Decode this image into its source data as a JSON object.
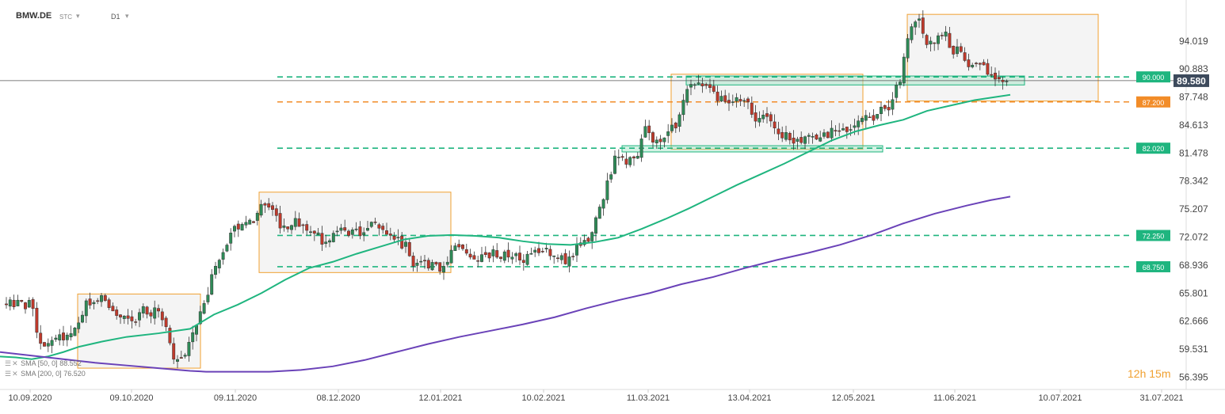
{
  "header": {
    "symbol": "BMW.DE",
    "exchange": "STC",
    "timeframe": "D1",
    "dropdown_icon": "chevron-down-icon"
  },
  "legend": {
    "sma50": {
      "label": "SMA [50, 0]",
      "value": "88.552",
      "color": "#1fb57f"
    },
    "sma200": {
      "label": "SMA [200, 0]",
      "value": "76.520",
      "color": "#6a42b8"
    }
  },
  "countdown": {
    "hours": "12",
    "hours_unit": "h",
    "minutes": "15",
    "minutes_unit": "m",
    "color": "#f0a030"
  },
  "chart_data": {
    "type": "candlestick",
    "title": "",
    "ylim": [
      55.9,
      97.9
    ],
    "grid": false,
    "colors": {
      "up": "#2e8b57",
      "down": "#c0392b",
      "support": "#1fb57f",
      "resistance": "#f28c28",
      "zone_box_border": "#f0a030"
    },
    "x_ticks": [
      "10.09.2020",
      "09.10.2020",
      "09.11.2020",
      "08.12.2020",
      "12.01.2021",
      "10.02.2021",
      "11.03.2021",
      "13.04.2021",
      "12.05.2021",
      "11.06.2021",
      "10.07.2021",
      "31.07.2021"
    ],
    "y_ticks": [
      "94.019",
      "90.883",
      "87.748",
      "84.613",
      "81.478",
      "78.342",
      "75.207",
      "72.072",
      "68.936",
      "65.801",
      "62.666",
      "59.531",
      "56.395"
    ],
    "current_price": {
      "value": 89.58,
      "label": "89.580"
    },
    "levels": [
      {
        "value": 90.0,
        "label": "90.000",
        "color": "#1fb57f"
      },
      {
        "value": 87.2,
        "label": "87.200",
        "color": "#f28c28"
      },
      {
        "value": 82.02,
        "label": "82.020",
        "color": "#1fb57f"
      },
      {
        "value": 72.25,
        "label": "72.250",
        "color": "#1fb57f"
      },
      {
        "value": 68.75,
        "label": "68.750",
        "color": "#1fb57f"
      }
    ],
    "series": [
      {
        "name": "SMA [50, 0]",
        "type": "line",
        "color": "#1fb57f",
        "points": [
          [
            0,
            58.7
          ],
          [
            20,
            58.6
          ],
          [
            40,
            58.4
          ],
          [
            60,
            58.7
          ],
          [
            80,
            59.2
          ],
          [
            100,
            59.8
          ],
          [
            130,
            60.4
          ],
          [
            160,
            60.9
          ],
          [
            200,
            61.3
          ],
          [
            240,
            61.8
          ],
          [
            270,
            63.4
          ],
          [
            300,
            64.5
          ],
          [
            330,
            65.8
          ],
          [
            360,
            67.3
          ],
          [
            390,
            68.6
          ],
          [
            420,
            69.3
          ],
          [
            450,
            70.2
          ],
          [
            480,
            71.0
          ],
          [
            510,
            71.8
          ],
          [
            540,
            72.2
          ],
          [
            570,
            72.3
          ],
          [
            600,
            72.2
          ],
          [
            630,
            72.0
          ],
          [
            660,
            71.6
          ],
          [
            690,
            71.3
          ],
          [
            720,
            71.2
          ],
          [
            750,
            71.5
          ],
          [
            780,
            72.0
          ],
          [
            810,
            73.0
          ],
          [
            840,
            74.1
          ],
          [
            870,
            75.3
          ],
          [
            900,
            76.6
          ],
          [
            930,
            77.9
          ],
          [
            960,
            79.1
          ],
          [
            990,
            80.3
          ],
          [
            1020,
            81.6
          ],
          [
            1050,
            82.9
          ],
          [
            1080,
            83.9
          ],
          [
            1110,
            84.6
          ],
          [
            1140,
            85.2
          ],
          [
            1170,
            86.2
          ],
          [
            1200,
            86.8
          ],
          [
            1230,
            87.4
          ],
          [
            1260,
            87.8
          ],
          [
            1275,
            88.0
          ]
        ]
      },
      {
        "name": "SMA [200, 0]",
        "type": "line",
        "color": "#6a42b8",
        "points": [
          [
            0,
            59.2
          ],
          [
            40,
            58.8
          ],
          [
            80,
            58.4
          ],
          [
            120,
            58.0
          ],
          [
            160,
            57.7
          ],
          [
            200,
            57.4
          ],
          [
            240,
            57.1
          ],
          [
            260,
            57.0
          ],
          [
            300,
            57.0
          ],
          [
            340,
            57.0
          ],
          [
            380,
            57.2
          ],
          [
            420,
            57.6
          ],
          [
            460,
            58.3
          ],
          [
            500,
            59.2
          ],
          [
            540,
            60.1
          ],
          [
            580,
            60.9
          ],
          [
            620,
            61.6
          ],
          [
            660,
            62.3
          ],
          [
            700,
            63.1
          ],
          [
            740,
            64.1
          ],
          [
            780,
            65.0
          ],
          [
            820,
            65.8
          ],
          [
            860,
            66.8
          ],
          [
            900,
            67.6
          ],
          [
            940,
            68.6
          ],
          [
            980,
            69.5
          ],
          [
            1020,
            70.3
          ],
          [
            1060,
            71.2
          ],
          [
            1100,
            72.3
          ],
          [
            1140,
            73.6
          ],
          [
            1180,
            74.7
          ],
          [
            1220,
            75.6
          ],
          [
            1250,
            76.2
          ],
          [
            1275,
            76.6
          ]
        ]
      }
    ],
    "zones": [
      {
        "x0": 98,
        "x1": 253,
        "y_top": 65.7,
        "y_bottom": 57.4,
        "kind": "box"
      },
      {
        "x0": 327,
        "x1": 569,
        "y_top": 77.1,
        "y_bottom": 68.1,
        "kind": "box"
      },
      {
        "x0": 847,
        "x1": 1089,
        "y_top": 90.3,
        "y_bottom": 81.9,
        "kind": "box"
      },
      {
        "x0": 1145,
        "x1": 1386,
        "y_top": 97.0,
        "y_bottom": 87.3,
        "kind": "box"
      },
      {
        "x0": 866,
        "x1": 1293,
        "y_top": 90.1,
        "y_bottom": 89.1,
        "kind": "band"
      },
      {
        "x0": 785,
        "x1": 1114,
        "y_top": 82.3,
        "y_bottom": 81.6,
        "kind": "band"
      }
    ],
    "candles_keypoints": [
      [
        8,
        64.5
      ],
      [
        40,
        64.6
      ],
      [
        48,
        60.3
      ],
      [
        62,
        60.5
      ],
      [
        80,
        61.1
      ],
      [
        95,
        62.3
      ],
      [
        110,
        64.6
      ],
      [
        130,
        65.5
      ],
      [
        160,
        62.3
      ],
      [
        180,
        63.8
      ],
      [
        200,
        63.5
      ],
      [
        212,
        61.5
      ],
      [
        220,
        57.5
      ],
      [
        235,
        59.5
      ],
      [
        248,
        62.5
      ],
      [
        258,
        64.3
      ],
      [
        268,
        68.0
      ],
      [
        280,
        70.7
      ],
      [
        300,
        73.2
      ],
      [
        320,
        74.2
      ],
      [
        338,
        76.0
      ],
      [
        355,
        73.0
      ],
      [
        370,
        74.0
      ],
      [
        395,
        73.0
      ],
      [
        412,
        71.3
      ],
      [
        430,
        73.1
      ],
      [
        450,
        72.4
      ],
      [
        470,
        73.5
      ],
      [
        490,
        71.8
      ],
      [
        510,
        71.3
      ],
      [
        525,
        68.8
      ],
      [
        545,
        69.0
      ],
      [
        560,
        68.5
      ],
      [
        570,
        70.5
      ],
      [
        585,
        70.5
      ],
      [
        600,
        69.7
      ],
      [
        620,
        70.3
      ],
      [
        640,
        69.8
      ],
      [
        660,
        69.6
      ],
      [
        680,
        70.2
      ],
      [
        700,
        70.3
      ],
      [
        715,
        69.2
      ],
      [
        730,
        71.0
      ],
      [
        745,
        72.3
      ],
      [
        760,
        75.8
      ],
      [
        775,
        80.8
      ],
      [
        790,
        80.3
      ],
      [
        805,
        81.5
      ],
      [
        815,
        84.9
      ],
      [
        827,
        82.5
      ],
      [
        840,
        83.0
      ],
      [
        855,
        85.0
      ],
      [
        868,
        88.9
      ],
      [
        885,
        89.2
      ],
      [
        900,
        88.2
      ],
      [
        920,
        86.9
      ],
      [
        940,
        87.5
      ],
      [
        950,
        85.6
      ],
      [
        970,
        85.4
      ],
      [
        990,
        83.4
      ],
      [
        1010,
        82.5
      ],
      [
        1030,
        83.3
      ],
      [
        1050,
        83.8
      ],
      [
        1065,
        84.0
      ],
      [
        1080,
        84.3
      ],
      [
        1100,
        85.6
      ],
      [
        1120,
        86.4
      ],
      [
        1135,
        89.5
      ],
      [
        1142,
        92.8
      ],
      [
        1150,
        96.0
      ],
      [
        1160,
        96.1
      ],
      [
        1170,
        93.4
      ],
      [
        1190,
        95.2
      ],
      [
        1200,
        93.3
      ],
      [
        1210,
        92.7
      ],
      [
        1220,
        91.5
      ],
      [
        1235,
        91.3
      ],
      [
        1250,
        90.4
      ],
      [
        1265,
        89.7
      ],
      [
        1275,
        89.6
      ]
    ]
  }
}
